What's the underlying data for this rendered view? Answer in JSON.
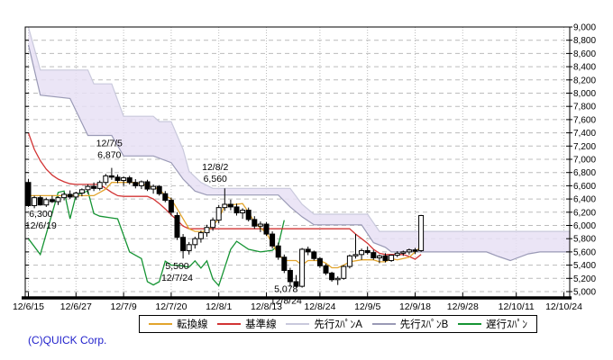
{
  "footer": {
    "copyright": "(C)QUICK Corp."
  },
  "colors": {
    "background": "#ffffff",
    "grid": "#bcbcbc",
    "axis": "#000000",
    "cloud_fill": "#e7e1f4",
    "tenkan": "#e2a42c",
    "kijun": "#d23434",
    "span_a": "#c9c9dc",
    "span_b": "#9a9ab6",
    "chikou": "#169434",
    "candle_up_fill": "#ffffff",
    "candle_down_fill": "#000000",
    "copyright_blue": "#2222cc"
  },
  "chart_data": {
    "type": "candlestick-ichimoku",
    "title": "",
    "grid": true,
    "y_axis": {
      "min": 5000,
      "max": 9000,
      "step": 200,
      "side": "right"
    },
    "x_axis": {
      "tick_labels": [
        "12/6/15",
        "12/6/27",
        "12/7/9",
        "12/7/20",
        "12/8/1",
        "12/8/13",
        "12/8/24",
        "12/9/5",
        "12/9/18",
        "12/9/28",
        "12/10/11",
        "12/10/24"
      ],
      "tick_days": [
        0,
        8,
        16,
        24,
        32,
        40,
        49,
        57,
        65,
        73,
        82,
        90
      ],
      "total_days": 92
    },
    "legend": [
      {
        "name": "tenkan",
        "label": "転換線"
      },
      {
        "name": "kijun",
        "label": "基準線"
      },
      {
        "name": "span_a",
        "label": "先行ｽﾊﾟﾝA"
      },
      {
        "name": "span_b",
        "label": "先行ｽﾊﾟﾝB"
      },
      {
        "name": "chikou",
        "label": "遅行ｽﾊﾟﾝ"
      }
    ],
    "annotations": [
      {
        "lines": [
          "12/7/5",
          "6,870"
        ],
        "d": 13.6,
        "p": 7200,
        "kind": "swing-high"
      },
      {
        "lines": [
          "12/8/2",
          "6,560"
        ],
        "d": 31.4,
        "p": 6840,
        "kind": "swing-high"
      },
      {
        "lines": [
          "6,300",
          "12/6/19"
        ],
        "d": 2.1,
        "p": 6130,
        "kind": "swing-low"
      },
      {
        "lines": [
          "5,500",
          "12/7/24"
        ],
        "d": 25.0,
        "p": 5340,
        "kind": "swing-low"
      },
      {
        "lines": [
          "5,078",
          "12/8/24"
        ],
        "d": 43.3,
        "p": 4990,
        "kind": "swing-low"
      }
    ],
    "candles": [
      [
        0,
        6650,
        6700,
        6280,
        6300
      ],
      [
        1,
        6300,
        6450,
        6260,
        6420
      ],
      [
        2,
        6420,
        6450,
        6300,
        6310
      ],
      [
        3,
        6310,
        6420,
        6280,
        6390
      ],
      [
        4,
        6390,
        6450,
        6340,
        6360
      ],
      [
        5,
        6360,
        6440,
        6310,
        6420
      ],
      [
        6,
        6420,
        6500,
        6380,
        6470
      ],
      [
        7,
        6470,
        6530,
        6400,
        6430
      ],
      [
        8,
        6430,
        6510,
        6390,
        6490
      ],
      [
        9,
        6490,
        6560,
        6440,
        6540
      ],
      [
        10,
        6540,
        6620,
        6480,
        6590
      ],
      [
        11,
        6590,
        6650,
        6520,
        6560
      ],
      [
        12,
        6560,
        6680,
        6530,
        6650
      ],
      [
        13,
        6650,
        6780,
        6610,
        6750
      ],
      [
        14,
        6750,
        6870,
        6690,
        6730
      ],
      [
        15,
        6730,
        6770,
        6640,
        6680
      ],
      [
        16,
        6680,
        6740,
        6600,
        6720
      ],
      [
        17,
        6720,
        6750,
        6620,
        6650
      ],
      [
        18,
        6650,
        6700,
        6560,
        6600
      ],
      [
        19,
        6600,
        6680,
        6550,
        6660
      ],
      [
        20,
        6660,
        6690,
        6520,
        6550
      ],
      [
        21,
        6550,
        6620,
        6480,
        6590
      ],
      [
        22,
        6590,
        6610,
        6450,
        6480
      ],
      [
        23,
        6480,
        6520,
        6350,
        6380
      ],
      [
        24,
        6380,
        6420,
        6150,
        6200
      ],
      [
        25,
        6150,
        6200,
        5780,
        5820
      ],
      [
        26,
        5820,
        5870,
        5500,
        5620
      ],
      [
        27,
        5620,
        5750,
        5560,
        5710
      ],
      [
        28,
        5710,
        5830,
        5650,
        5800
      ],
      [
        29,
        5800,
        5920,
        5740,
        5890
      ],
      [
        30,
        5890,
        6010,
        5830,
        5970
      ],
      [
        31,
        5970,
        6120,
        5920,
        6080
      ],
      [
        32,
        6080,
        6310,
        6030,
        6270
      ],
      [
        33,
        6270,
        6560,
        6220,
        6320
      ],
      [
        34,
        6320,
        6390,
        6230,
        6280
      ],
      [
        35,
        6280,
        6330,
        6150,
        6190
      ],
      [
        36,
        6190,
        6260,
        6100,
        6230
      ],
      [
        37,
        6230,
        6270,
        6060,
        6090
      ],
      [
        38,
        6090,
        6140,
        5950,
        5990
      ],
      [
        39,
        5990,
        6060,
        5900,
        6020
      ],
      [
        40,
        6020,
        6050,
        5840,
        5870
      ],
      [
        41,
        5870,
        5910,
        5650,
        5690
      ],
      [
        42,
        5690,
        5740,
        5480,
        5520
      ],
      [
        43,
        5520,
        5560,
        5280,
        5320
      ],
      [
        44,
        5320,
        5360,
        5078,
        5150
      ],
      [
        45,
        5150,
        5250,
        5060,
        5080
      ],
      [
        46,
        5080,
        5660,
        5060,
        5640
      ],
      [
        47,
        5640,
        5680,
        5550,
        5600
      ],
      [
        48,
        5600,
        5620,
        5470,
        5500
      ],
      [
        49,
        5500,
        5520,
        5360,
        5390
      ],
      [
        50,
        5390,
        5420,
        5250,
        5280
      ],
      [
        51,
        5280,
        5300,
        5150,
        5180
      ],
      [
        52,
        5180,
        5230,
        5100,
        5200
      ],
      [
        53,
        5200,
        5400,
        5180,
        5380
      ],
      [
        54,
        5380,
        5560,
        5350,
        5540
      ],
      [
        55,
        5540,
        5870,
        5500,
        5560
      ],
      [
        56,
        5560,
        5650,
        5480,
        5620
      ],
      [
        57,
        5620,
        5680,
        5560,
        5590
      ],
      [
        58,
        5590,
        5630,
        5480,
        5510
      ],
      [
        59,
        5510,
        5560,
        5430,
        5540
      ],
      [
        60,
        5540,
        5580,
        5440,
        5470
      ],
      [
        61,
        5470,
        5560,
        5450,
        5550
      ],
      [
        62,
        5550,
        5610,
        5520,
        5580
      ],
      [
        63,
        5580,
        5620,
        5540,
        5600
      ],
      [
        64,
        5600,
        5650,
        5560,
        5630
      ],
      [
        65,
        5630,
        5660,
        5570,
        5610
      ],
      [
        66,
        5620,
        6160,
        5600,
        6150
      ]
    ],
    "lines": {
      "tenkan": [
        [
          0,
          6450
        ],
        [
          11,
          6450
        ],
        [
          12,
          6500
        ],
        [
          13,
          6550
        ],
        [
          14,
          6650
        ],
        [
          18,
          6650
        ],
        [
          20,
          6600
        ],
        [
          22,
          6550
        ],
        [
          23,
          6450
        ],
        [
          24,
          6400
        ],
        [
          25,
          6250
        ],
        [
          26,
          6100
        ],
        [
          27,
          5950
        ],
        [
          28,
          5910
        ],
        [
          30,
          5910
        ],
        [
          31,
          6000
        ],
        [
          32,
          6100
        ],
        [
          33,
          6300
        ],
        [
          36,
          6330
        ],
        [
          37,
          6200
        ],
        [
          38,
          6050
        ],
        [
          39,
          5960
        ],
        [
          40,
          5890
        ],
        [
          41,
          5720
        ],
        [
          42,
          5570
        ],
        [
          43,
          5470
        ],
        [
          45,
          5470
        ],
        [
          46,
          5400
        ],
        [
          47,
          5470
        ],
        [
          49,
          5470
        ],
        [
          50,
          5430
        ],
        [
          51,
          5360
        ],
        [
          52,
          5360
        ],
        [
          53,
          5400
        ],
        [
          54,
          5450
        ],
        [
          56,
          5480
        ],
        [
          58,
          5480
        ],
        [
          59,
          5450
        ],
        [
          60,
          5450
        ],
        [
          61,
          5500
        ],
        [
          62,
          5480
        ],
        [
          64,
          5520
        ],
        [
          65,
          5600
        ],
        [
          66,
          5680
        ]
      ],
      "kijun": [
        [
          0,
          7400
        ],
        [
          1,
          7150
        ],
        [
          2,
          6980
        ],
        [
          3,
          6850
        ],
        [
          4,
          6760
        ],
        [
          5,
          6700
        ],
        [
          6,
          6660
        ],
        [
          7,
          6630
        ],
        [
          8,
          6620
        ],
        [
          12,
          6620
        ],
        [
          13,
          6560
        ],
        [
          14,
          6500
        ],
        [
          15,
          6450
        ],
        [
          16,
          6440
        ],
        [
          20,
          6440
        ],
        [
          21,
          6400
        ],
        [
          22,
          6330
        ],
        [
          23,
          6250
        ],
        [
          24,
          6160
        ],
        [
          25,
          6080
        ],
        [
          26,
          5990
        ],
        [
          27,
          5950
        ],
        [
          54,
          5950
        ],
        [
          55,
          5870
        ],
        [
          56,
          5800
        ],
        [
          57,
          5730
        ],
        [
          58,
          5640
        ],
        [
          59,
          5580
        ],
        [
          60,
          5560
        ],
        [
          63,
          5560
        ],
        [
          64,
          5530
        ],
        [
          65,
          5490
        ],
        [
          66,
          5560
        ]
      ],
      "span_a": [
        [
          0,
          9000
        ],
        [
          2,
          8350
        ],
        [
          10,
          8350
        ],
        [
          11,
          8140
        ],
        [
          14,
          8140
        ],
        [
          16,
          7650
        ],
        [
          21,
          7650
        ],
        [
          22,
          7570
        ],
        [
          24,
          7570
        ],
        [
          26,
          7150
        ],
        [
          27,
          6820
        ],
        [
          29,
          6650
        ],
        [
          31,
          6560
        ],
        [
          44,
          6560
        ],
        [
          46,
          6320
        ],
        [
          48,
          6170
        ],
        [
          57,
          6170
        ],
        [
          59,
          5910
        ],
        [
          91,
          5910
        ]
      ],
      "span_b": [
        [
          0,
          8730
        ],
        [
          2,
          7970
        ],
        [
          7,
          7920
        ],
        [
          10,
          7360
        ],
        [
          14,
          7360
        ],
        [
          16,
          7050
        ],
        [
          21,
          7050
        ],
        [
          24,
          6950
        ],
        [
          26,
          6700
        ],
        [
          28,
          6520
        ],
        [
          30,
          6460
        ],
        [
          42,
          6460
        ],
        [
          44,
          6280
        ],
        [
          46,
          6130
        ],
        [
          48,
          6010
        ],
        [
          56,
          6010
        ],
        [
          58,
          5740
        ],
        [
          60,
          5670
        ],
        [
          61,
          5600
        ],
        [
          77,
          5600
        ],
        [
          79,
          5530
        ],
        [
          81,
          5470
        ],
        [
          84,
          5570
        ],
        [
          86,
          5600
        ],
        [
          91,
          5600
        ]
      ],
      "chikou": [
        [
          0,
          5800
        ],
        [
          2,
          5560
        ],
        [
          5,
          6500
        ],
        [
          6,
          6520
        ],
        [
          7,
          6100
        ],
        [
          8,
          6460
        ],
        [
          10,
          6520
        ],
        [
          11,
          6180
        ],
        [
          12,
          6140
        ],
        [
          15,
          6100
        ],
        [
          17,
          5600
        ],
        [
          19,
          5500
        ],
        [
          20,
          5150
        ],
        [
          21,
          5100
        ],
        [
          22,
          5150
        ],
        [
          23,
          5460
        ],
        [
          24,
          5400
        ],
        [
          25,
          5400
        ],
        [
          27,
          5370
        ],
        [
          28,
          5465
        ],
        [
          29,
          5355
        ],
        [
          30,
          5465
        ],
        [
          31,
          5190
        ],
        [
          32,
          5090
        ],
        [
          34,
          5640
        ],
        [
          35,
          5760
        ],
        [
          37,
          5640
        ],
        [
          39,
          5600
        ],
        [
          41,
          5625
        ],
        [
          42,
          5700
        ],
        [
          43,
          6080
        ]
      ]
    }
  }
}
